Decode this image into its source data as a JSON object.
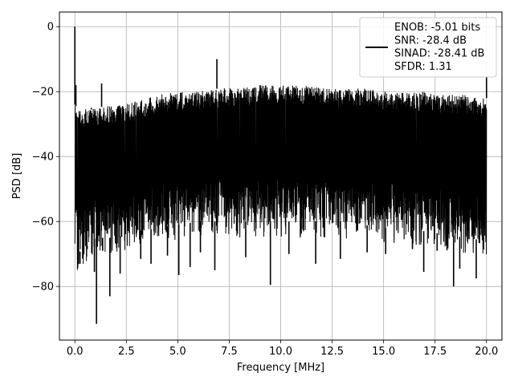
{
  "chart_data": {
    "type": "line",
    "title": "",
    "xlabel": "Frequency [MHz]",
    "ylabel": "PSD [dB]",
    "xlim": [
      -0.75,
      20.75
    ],
    "ylim": [
      -96.5,
      4.5
    ],
    "x_ticks": [
      0.0,
      2.5,
      5.0,
      7.5,
      10.0,
      12.5,
      15.0,
      17.5,
      20.0
    ],
    "x_tick_labels": [
      "0.0",
      "2.5",
      "5.0",
      "7.5",
      "10.0",
      "12.5",
      "15.0",
      "17.5",
      "20.0"
    ],
    "y_ticks": [
      0,
      -20,
      -40,
      -60,
      -80
    ],
    "y_tick_labels": [
      "0",
      "−20",
      "−40",
      "−60",
      "−80"
    ],
    "grid": true,
    "legend_position": "top-right",
    "color": "#000000",
    "series": [
      {
        "name": "ENOB: -5.01 bits\nSNR: -28.4 dB\nSINAD: -28.41 dB\nSFDR: 1.31",
        "legend_lines": [
          "ENOB: -5.01 bits",
          "SNR: -28.4 dB",
          "SINAD: -28.41 dB",
          "SFDR: 1.31"
        ],
        "x_range": [
          0.0,
          20.0
        ],
        "envelope_x": [
          0.0,
          0.1,
          0.5,
          1.0,
          2.0,
          3.0,
          4.0,
          5.0,
          6.0,
          7.0,
          8.0,
          9.0,
          10.0,
          11.0,
          12.0,
          13.0,
          14.0,
          15.0,
          16.0,
          17.0,
          18.0,
          19.0,
          20.0
        ],
        "envelope_top": [
          -24,
          -25,
          -25,
          -25,
          -24,
          -23,
          -21,
          -20,
          -20,
          -19,
          -19,
          -18,
          -18,
          -18,
          -19,
          -19,
          -19,
          -20,
          -20,
          -20,
          -21,
          -21,
          -22
        ],
        "envelope_bottom": [
          -66,
          -70,
          -68,
          -65,
          -65,
          -63,
          -62,
          -61,
          -60,
          -60,
          -60,
          -60,
          -60,
          -60,
          -60,
          -60,
          -61,
          -62,
          -62,
          -63,
          -64,
          -65,
          -66
        ],
        "noise_floor_mean": -40,
        "peaks": [
          {
            "x": 0.0,
            "y": 0.0
          },
          {
            "x": 0.05,
            "y": -18.0
          },
          {
            "x": 0.8,
            "y": -25.5
          },
          {
            "x": 1.3,
            "y": -17.5
          },
          {
            "x": 6.9,
            "y": -10.0
          },
          {
            "x": 20.0,
            "y": -15.5
          }
        ],
        "dips": [
          {
            "x": 0.25,
            "y": -73.0
          },
          {
            "x": 0.6,
            "y": -68.5
          },
          {
            "x": 0.95,
            "y": -75.5
          },
          {
            "x": 1.05,
            "y": -91.5
          },
          {
            "x": 1.35,
            "y": -69.0
          },
          {
            "x": 1.7,
            "y": -83.0
          },
          {
            "x": 2.2,
            "y": -76.0
          },
          {
            "x": 3.2,
            "y": -71.5
          },
          {
            "x": 3.7,
            "y": -73.0
          },
          {
            "x": 4.5,
            "y": -70.5
          },
          {
            "x": 5.05,
            "y": -76.5
          },
          {
            "x": 5.6,
            "y": -74.0
          },
          {
            "x": 6.1,
            "y": -69.5
          },
          {
            "x": 6.8,
            "y": -75.0
          },
          {
            "x": 8.3,
            "y": -71.0
          },
          {
            "x": 9.5,
            "y": -79.5
          },
          {
            "x": 10.4,
            "y": -70.0
          },
          {
            "x": 11.7,
            "y": -73.0
          },
          {
            "x": 12.9,
            "y": -71.5
          },
          {
            "x": 14.2,
            "y": -69.5
          },
          {
            "x": 15.1,
            "y": -70.0
          },
          {
            "x": 16.4,
            "y": -68.5
          },
          {
            "x": 16.95,
            "y": -75.5
          },
          {
            "x": 17.6,
            "y": -69.0
          },
          {
            "x": 18.4,
            "y": -80.0
          },
          {
            "x": 18.7,
            "y": -74.5
          },
          {
            "x": 19.5,
            "y": -77.5
          }
        ]
      }
    ]
  }
}
